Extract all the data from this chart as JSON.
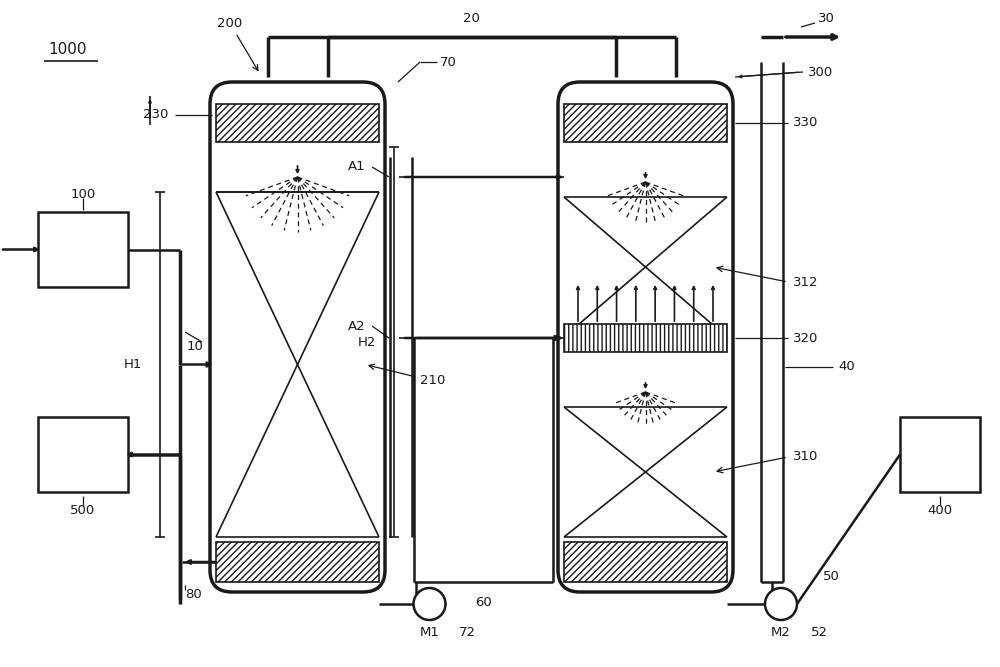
{
  "bg_color": "#ffffff",
  "line_color": "#1a1a1a",
  "fig_width": 10.0,
  "fig_height": 6.67,
  "labels": {
    "main": "1000",
    "lbl_200": "200",
    "lbl_230": "230",
    "lbl_210": "210",
    "lbl_70": "70",
    "lbl_20": "20",
    "lbl_30": "30",
    "lbl_300": "300",
    "lbl_330": "330",
    "lbl_312": "312",
    "lbl_320": "320",
    "lbl_310": "310",
    "lbl_40": "40",
    "lbl_A1": "A1",
    "lbl_A2": "A2",
    "lbl_H1": "H1",
    "lbl_H2": "H2",
    "lbl_100": "100",
    "lbl_10": "10",
    "lbl_500": "500",
    "lbl_80": "80",
    "lbl_M1": "M1",
    "lbl_72": "72",
    "lbl_60": "60",
    "lbl_M2": "M2",
    "lbl_52": "52",
    "lbl_50": "50",
    "lbl_400": "400"
  }
}
